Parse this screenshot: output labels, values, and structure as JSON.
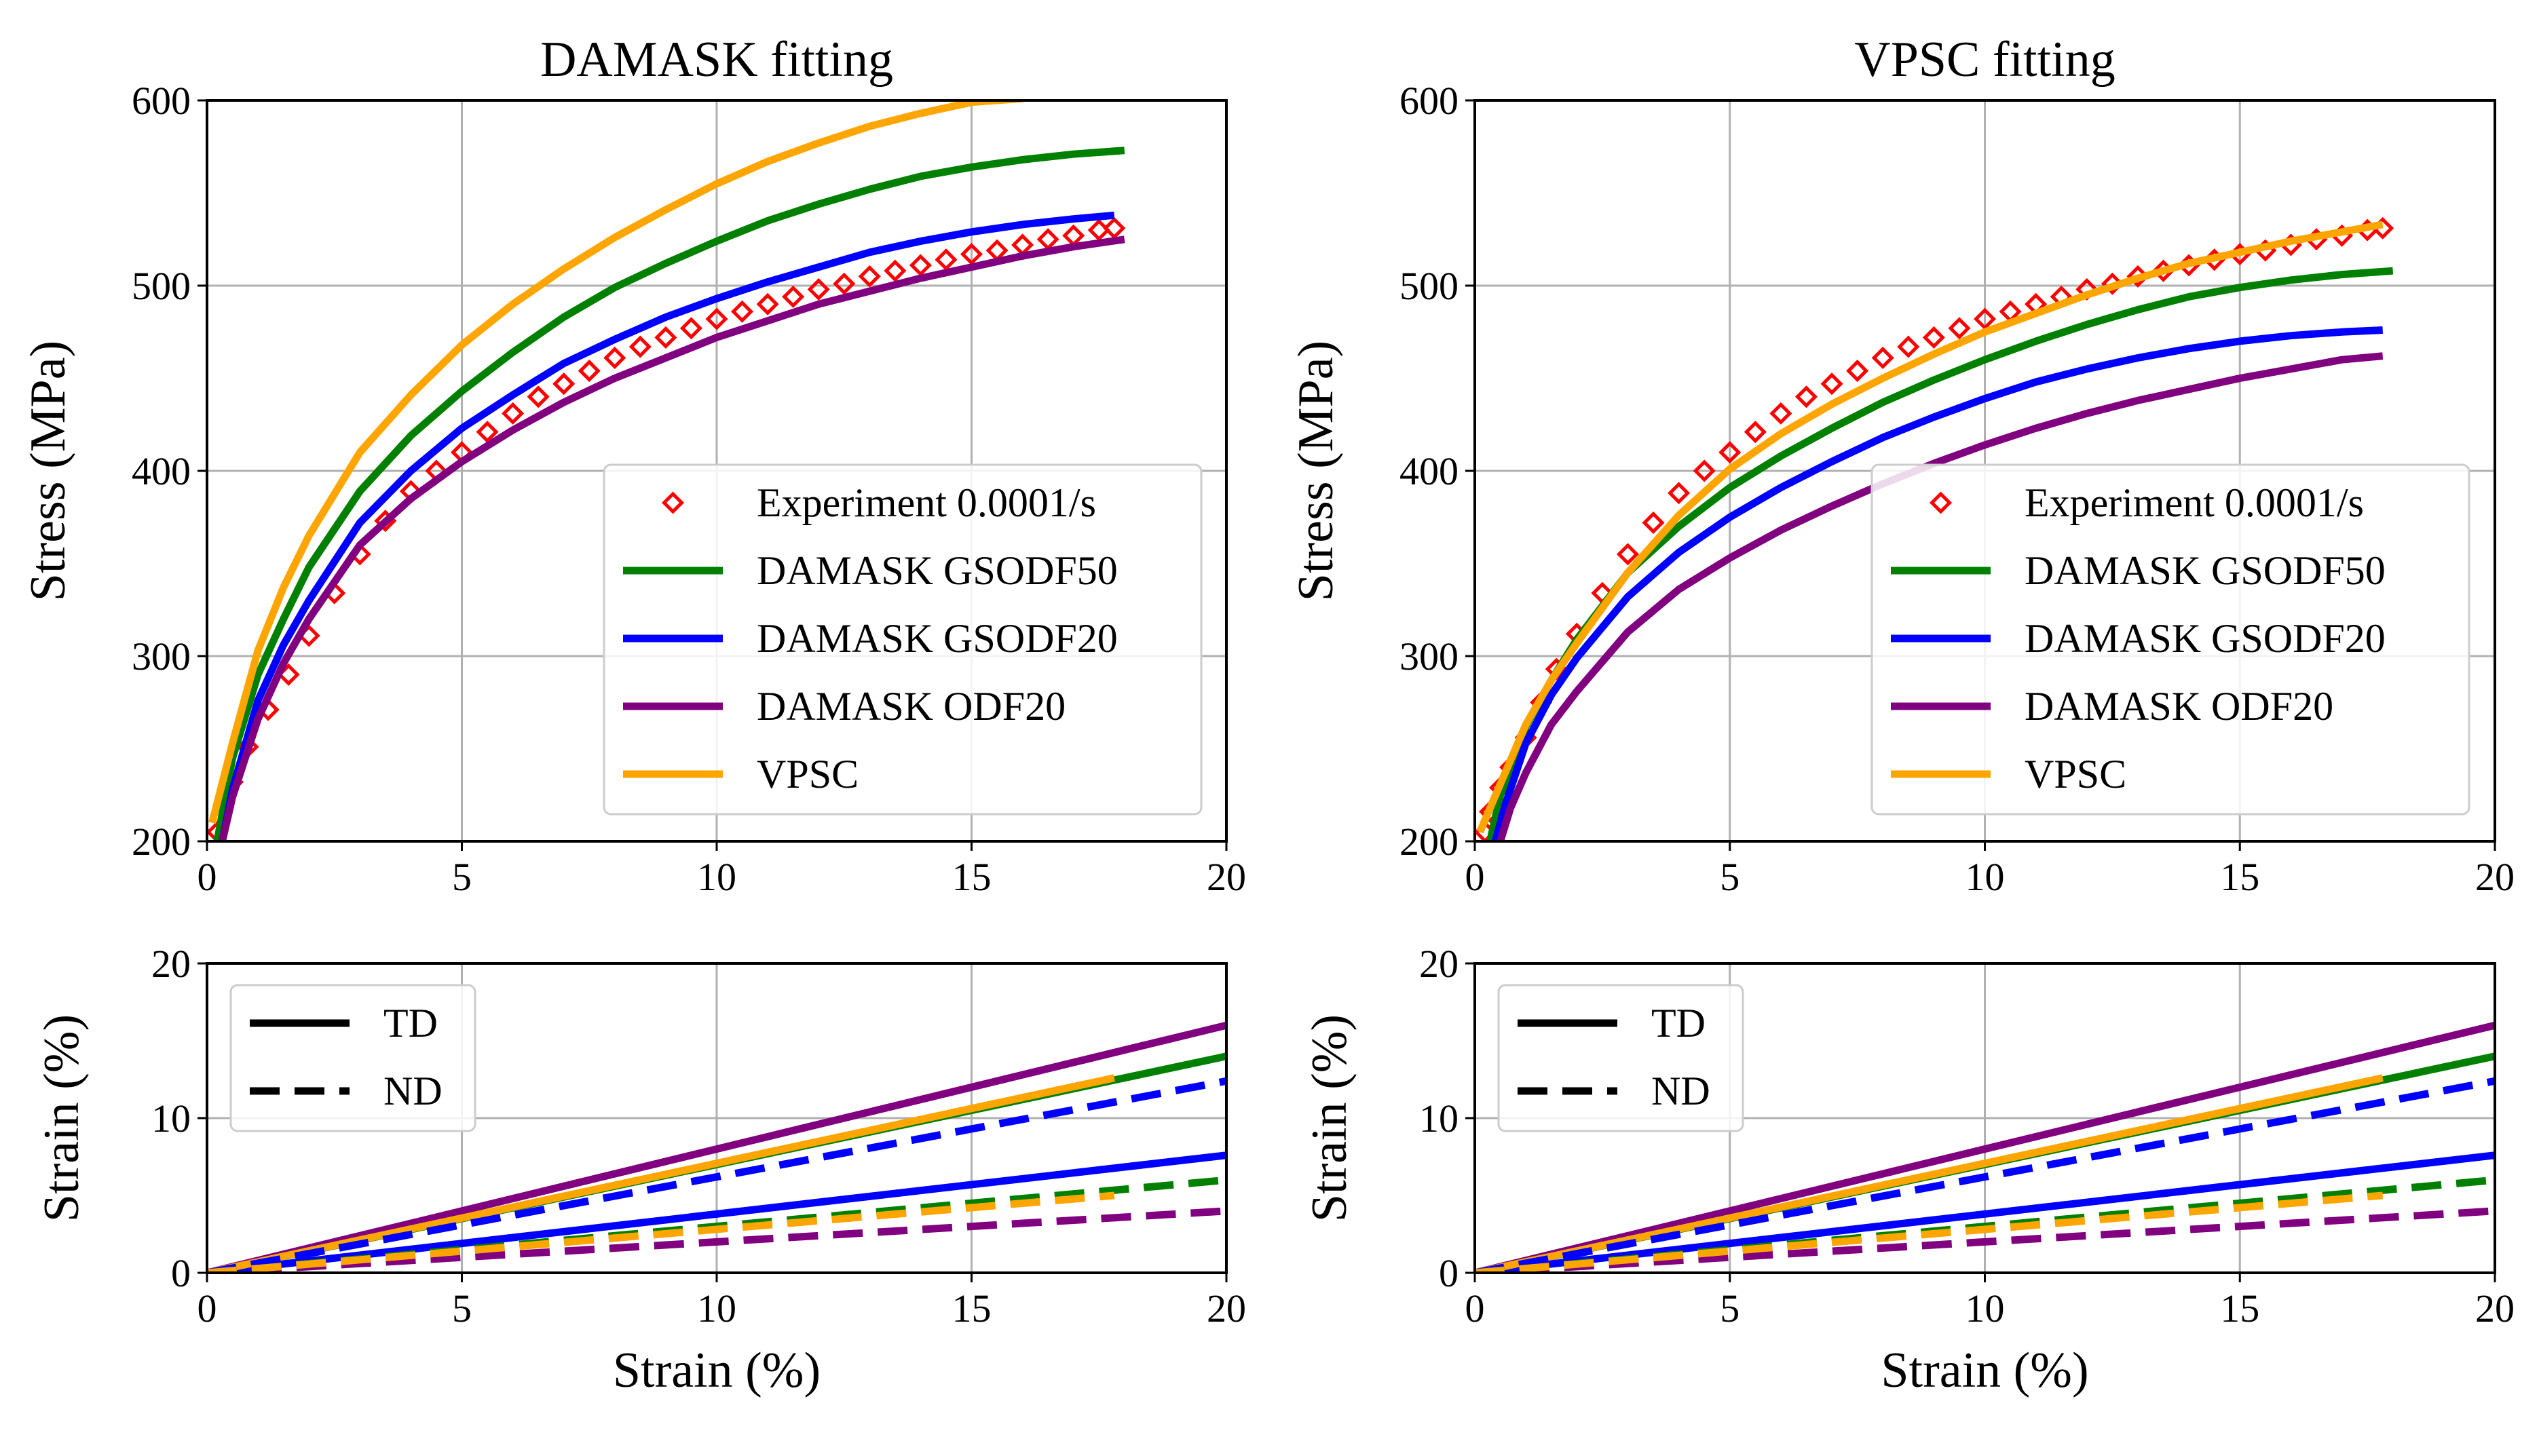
{
  "colors": {
    "experiment": "#ff0000",
    "gsodf50": "#008000",
    "gsodf20": "#0000ff",
    "odf20": "#800080",
    "vpsc": "#ffa500"
  },
  "chart_data": [
    {
      "id": "damask_stress",
      "type": "line",
      "title": "DAMASK fitting",
      "xlabel": "",
      "ylabel": "Stress (MPa)",
      "xlim": [
        0,
        20
      ],
      "ylim": [
        200,
        600
      ],
      "xticks": [
        "0",
        "5",
        "10",
        "15",
        "20"
      ],
      "yticks": [
        "200",
        "300",
        "400",
        "500",
        "600"
      ],
      "grid": true,
      "legend_position": "lower-right",
      "series": [
        {
          "name": "Experiment 0.0001/s",
          "style": "markers",
          "color": "#ff0000",
          "x": [
            0.2,
            0.5,
            0.8,
            1.2,
            1.6,
            2.0,
            2.5,
            3.0,
            3.5,
            4.0,
            4.5,
            5.0,
            5.5,
            6.0,
            6.5,
            7.0,
            7.5,
            8.0,
            8.5,
            9.0,
            9.5,
            10.0,
            10.5,
            11.0,
            11.5,
            12.0,
            12.5,
            13.0,
            13.5,
            14.0,
            14.5,
            15.0,
            15.5,
            16.0,
            16.5,
            17.0,
            17.5,
            17.8
          ],
          "y": [
            205,
            232,
            251,
            271,
            290,
            311,
            334,
            355,
            373,
            389,
            400,
            410,
            421,
            431,
            440,
            447,
            454,
            461,
            467,
            472,
            477,
            482,
            486,
            490,
            494,
            498,
            501,
            505,
            508,
            511,
            514,
            517,
            519,
            522,
            525,
            527,
            530,
            531
          ]
        },
        {
          "name": "DAMASK GSODF50",
          "style": "solid",
          "color": "#008000",
          "x": [
            0.2,
            0.5,
            1,
            1.5,
            2,
            3,
            4,
            5,
            6,
            7,
            8,
            9,
            10,
            11,
            12,
            13,
            14,
            15,
            16,
            17,
            18
          ],
          "y": [
            200,
            245,
            290,
            320,
            348,
            389,
            419,
            443,
            464,
            483,
            499,
            512,
            524,
            535,
            544,
            552,
            559,
            564,
            568,
            571,
            573
          ]
        },
        {
          "name": "DAMASK GSODF20",
          "style": "solid",
          "color": "#0000ff",
          "x": [
            0.3,
            0.5,
            1,
            1.5,
            2,
            3,
            4,
            5,
            6,
            7,
            8,
            9,
            10,
            11,
            12,
            13,
            14,
            15,
            16,
            17,
            17.8
          ],
          "y": [
            200,
            228,
            276,
            306,
            330,
            372,
            400,
            423,
            441,
            458,
            471,
            483,
            493,
            502,
            510,
            518,
            524,
            529,
            533,
            536,
            538
          ]
        },
        {
          "name": "DAMASK ODF20",
          "style": "solid",
          "color": "#800080",
          "x": [
            0.3,
            0.5,
            1,
            1.5,
            2,
            3,
            4,
            5,
            6,
            7,
            8,
            9,
            10,
            11,
            12,
            13,
            14,
            15,
            16,
            17,
            18
          ],
          "y": [
            200,
            224,
            266,
            296,
            320,
            360,
            385,
            405,
            422,
            437,
            450,
            461,
            472,
            481,
            490,
            497,
            504,
            510,
            516,
            521,
            525
          ]
        },
        {
          "name": "VPSC",
          "style": "solid",
          "color": "#ffa500",
          "x": [
            0.1,
            0.5,
            1,
            1.5,
            2,
            3,
            4,
            5,
            6,
            7,
            8,
            9,
            10,
            11,
            12,
            13,
            14,
            15,
            16
          ],
          "y": [
            210,
            253,
            303,
            337,
            365,
            410,
            441,
            468,
            490,
            509,
            526,
            541,
            555,
            567,
            577,
            586,
            593,
            599,
            601
          ]
        }
      ]
    },
    {
      "id": "vpsc_stress",
      "type": "line",
      "title": "VPSC fitting",
      "xlabel": "",
      "ylabel": "Stress (MPa)",
      "xlim": [
        0,
        20
      ],
      "ylim": [
        200,
        600
      ],
      "xticks": [
        "0",
        "5",
        "10",
        "15",
        "20"
      ],
      "yticks": [
        "200",
        "300",
        "400",
        "500",
        "600"
      ],
      "grid": true,
      "legend_position": "lower-right",
      "series": [
        {
          "name": "Experiment 0.0001/s",
          "style": "markers",
          "color": "#ff0000",
          "x": [
            0.2,
            0.3,
            0.5,
            0.7,
            1.0,
            1.3,
            1.6,
            2.0,
            2.5,
            3.0,
            3.5,
            4.0,
            4.5,
            5.0,
            5.5,
            6.0,
            6.5,
            7.0,
            7.5,
            8.0,
            8.5,
            9.0,
            9.5,
            10.0,
            10.5,
            11.0,
            11.5,
            12.0,
            12.5,
            13.0,
            13.5,
            14.0,
            14.5,
            15.0,
            15.5,
            16.0,
            16.5,
            17.0,
            17.5,
            17.8
          ],
          "y": [
            205,
            216,
            229,
            240,
            256,
            275,
            293,
            312,
            334,
            355,
            372,
            388,
            400,
            410,
            421,
            431,
            440,
            447,
            454,
            461,
            467,
            472,
            477,
            482,
            486,
            490,
            494,
            498,
            501,
            505,
            508,
            511,
            514,
            517,
            519,
            522,
            525,
            527,
            530,
            531
          ]
        },
        {
          "name": "DAMASK GSODF50",
          "style": "solid",
          "color": "#008000",
          "x": [
            0.3,
            0.5,
            1,
            1.5,
            2,
            3,
            4,
            5,
            6,
            7,
            8,
            9,
            10,
            11,
            12,
            13,
            14,
            15,
            16,
            17,
            18
          ],
          "y": [
            200,
            225,
            262,
            287,
            309,
            345,
            370,
            391,
            408,
            423,
            437,
            449,
            460,
            470,
            479,
            487,
            494,
            499,
            503,
            506,
            508
          ]
        },
        {
          "name": "DAMASK GSODF20",
          "style": "solid",
          "color": "#0000ff",
          "x": [
            0.4,
            0.6,
            1,
            1.5,
            2,
            3,
            4,
            5,
            6,
            7,
            8,
            9,
            10,
            11,
            12,
            13,
            14,
            15,
            16,
            17,
            17.8
          ],
          "y": [
            200,
            220,
            253,
            279,
            299,
            332,
            356,
            375,
            391,
            405,
            418,
            429,
            439,
            448,
            455,
            461,
            466,
            470,
            473,
            475,
            476
          ]
        },
        {
          "name": "DAMASK ODF20",
          "style": "solid",
          "color": "#800080",
          "x": [
            0.5,
            0.7,
            1,
            1.5,
            2,
            3,
            4,
            5,
            6,
            7,
            8,
            9,
            10,
            11,
            12,
            13,
            14,
            15,
            16,
            17,
            17.8
          ],
          "y": [
            200,
            218,
            237,
            263,
            281,
            313,
            336,
            353,
            368,
            381,
            393,
            404,
            414,
            423,
            431,
            438,
            444,
            450,
            455,
            460,
            462
          ]
        },
        {
          "name": "VPSC",
          "style": "solid",
          "color": "#ffa500",
          "x": [
            0.1,
            0.5,
            1,
            1.5,
            2,
            3,
            4,
            5,
            6,
            7,
            8,
            9,
            10,
            11,
            12,
            13,
            14,
            15,
            16,
            17,
            17.8
          ],
          "y": [
            205,
            231,
            263,
            287,
            307,
            345,
            376,
            401,
            420,
            436,
            450,
            463,
            475,
            485,
            495,
            504,
            512,
            518,
            524,
            529,
            533
          ]
        }
      ]
    },
    {
      "id": "damask_strain",
      "type": "line",
      "title": "",
      "xlabel": "Strain (%)",
      "ylabel": "Strain (%)",
      "xlim": [
        0,
        20
      ],
      "ylim": [
        0,
        20
      ],
      "xticks": [
        "0",
        "5",
        "10",
        "15",
        "20"
      ],
      "yticks": [
        "0",
        "10",
        "20"
      ],
      "grid": true,
      "legend_position": "upper-left",
      "series": [
        {
          "name": "DAMASK GSODF50 TD",
          "style": "solid",
          "color": "#008000",
          "x": [
            0,
            20
          ],
          "y": [
            0,
            14.0
          ]
        },
        {
          "name": "DAMASK GSODF20 TD",
          "style": "solid",
          "color": "#0000ff",
          "x": [
            0,
            20
          ],
          "y": [
            0,
            7.6
          ]
        },
        {
          "name": "DAMASK ODF20 TD",
          "style": "solid",
          "color": "#800080",
          "x": [
            0,
            20
          ],
          "y": [
            0,
            16.0
          ]
        },
        {
          "name": "VPSC TD",
          "style": "solid",
          "color": "#ffa500",
          "x": [
            0,
            17.8
          ],
          "y": [
            0,
            12.6
          ]
        },
        {
          "name": "DAMASK GSODF50 ND",
          "style": "dashed",
          "color": "#008000",
          "x": [
            0,
            20
          ],
          "y": [
            0,
            6.0
          ]
        },
        {
          "name": "DAMASK GSODF20 ND",
          "style": "dashed",
          "color": "#0000ff",
          "x": [
            0,
            20
          ],
          "y": [
            0,
            12.4
          ]
        },
        {
          "name": "DAMASK ODF20 ND",
          "style": "dashed",
          "color": "#800080",
          "x": [
            0,
            20
          ],
          "y": [
            0,
            4.0
          ]
        },
        {
          "name": "VPSC ND",
          "style": "dashed",
          "color": "#ffa500",
          "x": [
            0,
            17.8
          ],
          "y": [
            0,
            5.0
          ]
        }
      ]
    },
    {
      "id": "vpsc_strain",
      "type": "line",
      "title": "",
      "xlabel": "Strain (%)",
      "ylabel": "Strain (%)",
      "xlim": [
        0,
        20
      ],
      "ylim": [
        0,
        20
      ],
      "xticks": [
        "0",
        "5",
        "10",
        "15",
        "20"
      ],
      "yticks": [
        "0",
        "10",
        "20"
      ],
      "grid": true,
      "legend_position": "upper-left",
      "series": [
        {
          "name": "DAMASK GSODF50 TD",
          "style": "solid",
          "color": "#008000",
          "x": [
            0,
            20
          ],
          "y": [
            0,
            14.0
          ]
        },
        {
          "name": "DAMASK GSODF20 TD",
          "style": "solid",
          "color": "#0000ff",
          "x": [
            0,
            20
          ],
          "y": [
            0,
            7.6
          ]
        },
        {
          "name": "DAMASK ODF20 TD",
          "style": "solid",
          "color": "#800080",
          "x": [
            0,
            20
          ],
          "y": [
            0,
            16.0
          ]
        },
        {
          "name": "VPSC TD",
          "style": "solid",
          "color": "#ffa500",
          "x": [
            0,
            17.8
          ],
          "y": [
            0,
            12.6
          ]
        },
        {
          "name": "DAMASK GSODF50 ND",
          "style": "dashed",
          "color": "#008000",
          "x": [
            0,
            20
          ],
          "y": [
            0,
            6.0
          ]
        },
        {
          "name": "DAMASK GSODF20 ND",
          "style": "dashed",
          "color": "#0000ff",
          "x": [
            0,
            20
          ],
          "y": [
            0,
            12.4
          ]
        },
        {
          "name": "DAMASK ODF20 ND",
          "style": "dashed",
          "color": "#800080",
          "x": [
            0,
            20
          ],
          "y": [
            0,
            4.0
          ]
        },
        {
          "name": "VPSC ND",
          "style": "dashed",
          "color": "#ffa500",
          "x": [
            0,
            17.8
          ],
          "y": [
            0,
            5.0
          ]
        }
      ]
    }
  ],
  "legends": {
    "stress": [
      {
        "label": "Experiment 0.0001/s",
        "style": "marker",
        "color": "#ff0000"
      },
      {
        "label": "DAMASK GSODF50",
        "style": "solid",
        "color": "#008000"
      },
      {
        "label": "DAMASK GSODF20",
        "style": "solid",
        "color": "#0000ff"
      },
      {
        "label": "DAMASK ODF20",
        "style": "solid",
        "color": "#800080"
      },
      {
        "label": "VPSC",
        "style": "solid",
        "color": "#ffa500"
      }
    ],
    "strain": [
      {
        "label": "TD",
        "style": "solid",
        "color": "#000000"
      },
      {
        "label": "ND",
        "style": "dashed",
        "color": "#000000"
      }
    ]
  }
}
